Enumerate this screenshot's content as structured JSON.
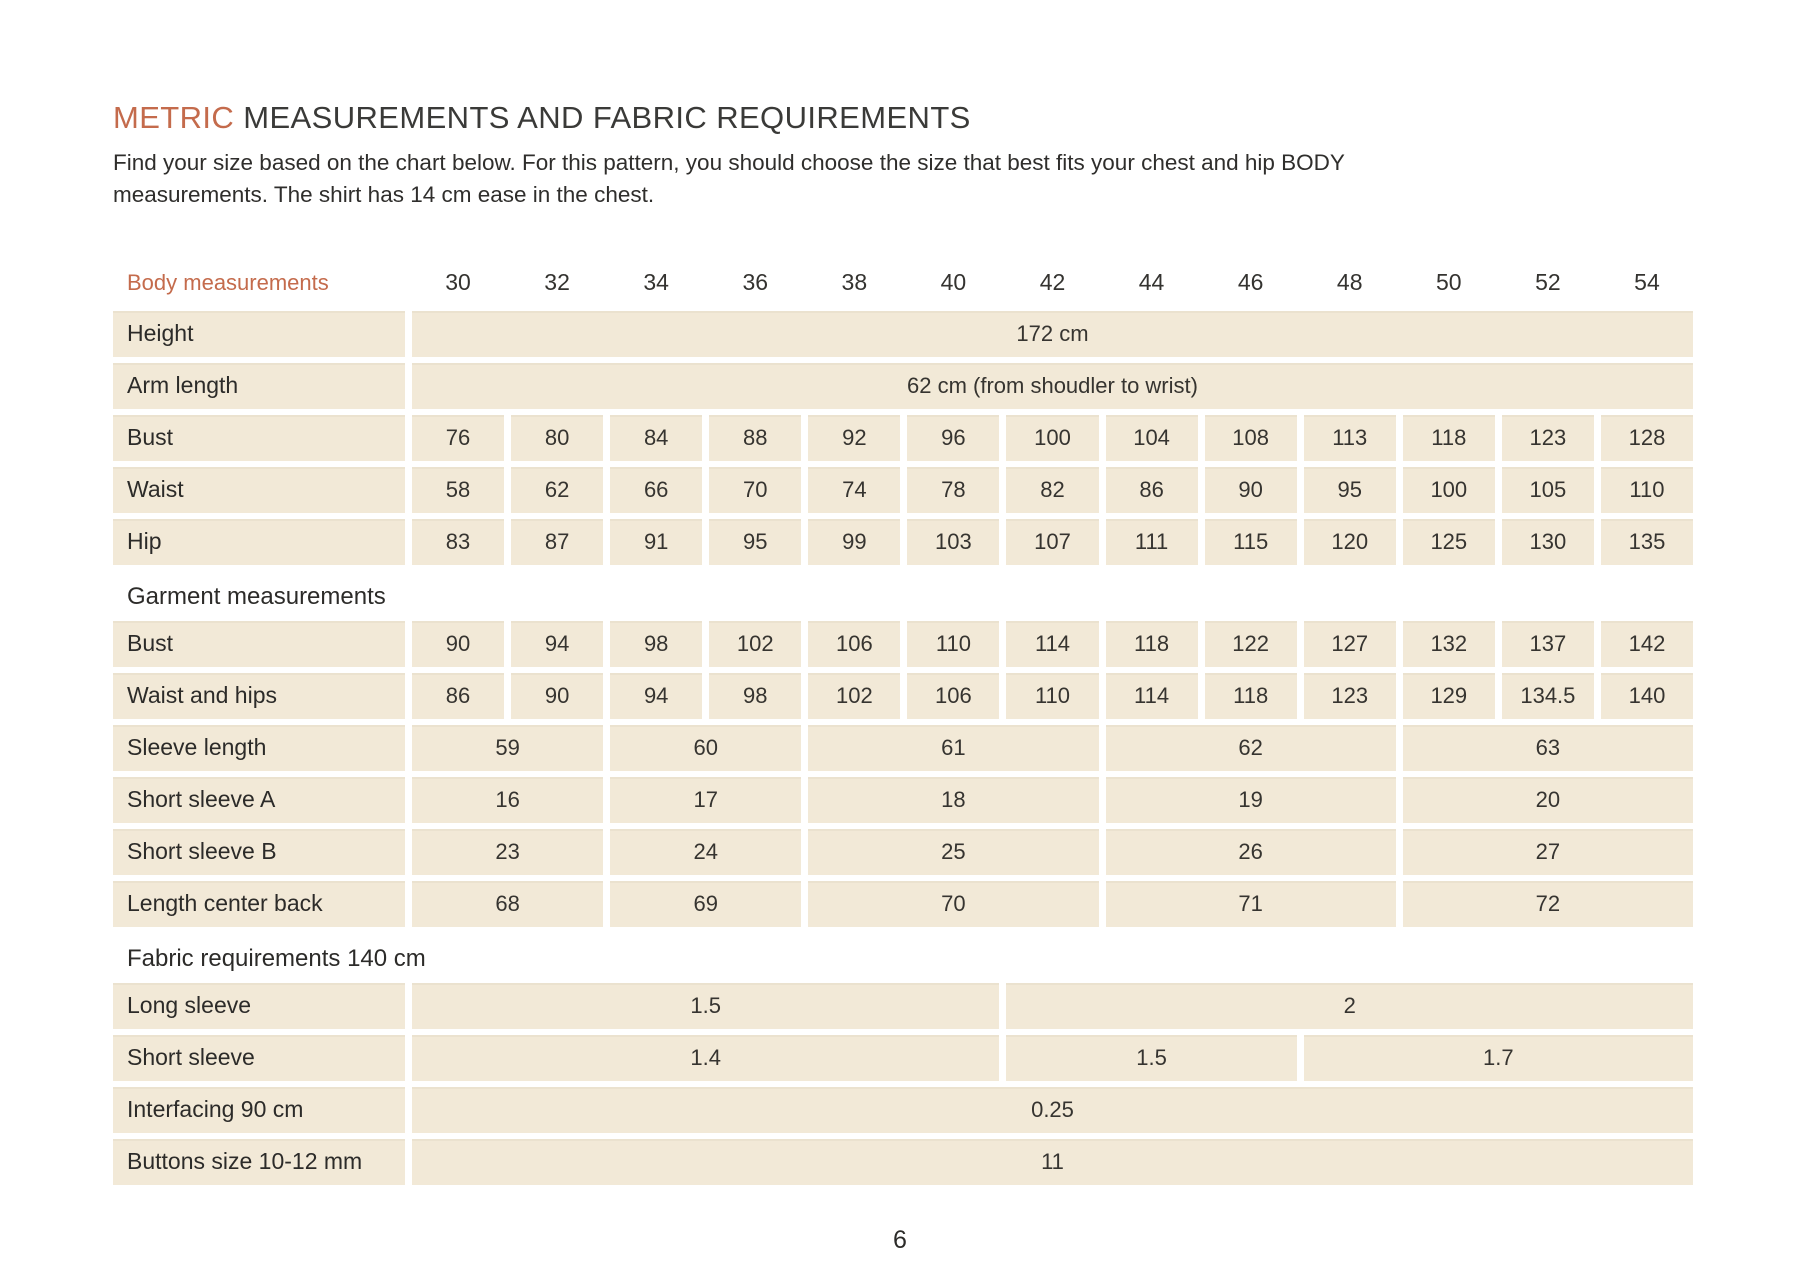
{
  "colors": {
    "accent": "#c46b4c",
    "cell_background": "#f2e9d7",
    "heading_text": "#3a3a38",
    "body_text": "#2f2e2c"
  },
  "page": {
    "title_highlight": "METRIC",
    "title_rest": " MEASUREMENTS AND FABRIC REQUIREMENTS",
    "intro_line1": "Find your size based on the chart below. For this pattern, you should choose the size that best fits your chest and hip BODY",
    "intro_line2": "measurements. The shirt has 14 cm ease in the chest.",
    "page_number": "6"
  },
  "table": {
    "header_label": "Body measurements",
    "sizes": [
      "30",
      "32",
      "34",
      "36",
      "38",
      "40",
      "42",
      "44",
      "46",
      "48",
      "50",
      "52",
      "54"
    ],
    "rows": [
      {
        "label": "Height",
        "cells": [
          {
            "span": 13,
            "value": "172 cm"
          }
        ]
      },
      {
        "label": "Arm length",
        "cells": [
          {
            "span": 13,
            "value": "62 cm (from shoudler to wrist)"
          }
        ]
      },
      {
        "label": "Bust",
        "values": [
          "76",
          "80",
          "84",
          "88",
          "92",
          "96",
          "100",
          "104",
          "108",
          "113",
          "118",
          "123",
          "128"
        ]
      },
      {
        "label": "Waist",
        "values": [
          "58",
          "62",
          "66",
          "70",
          "74",
          "78",
          "82",
          "86",
          "90",
          "95",
          "100",
          "105",
          "110"
        ]
      },
      {
        "label": "Hip",
        "values": [
          "83",
          "87",
          "91",
          "95",
          "99",
          "103",
          "107",
          "111",
          "115",
          "120",
          "125",
          "130",
          "135"
        ]
      },
      {
        "type": "section",
        "label": "Garment measurements"
      },
      {
        "label": "Bust",
        "values": [
          "90",
          "94",
          "98",
          "102",
          "106",
          "110",
          "114",
          "118",
          "122",
          "127",
          "132",
          "137",
          "142"
        ]
      },
      {
        "label": "Waist and hips",
        "values": [
          "86",
          "90",
          "94",
          "98",
          "102",
          "106",
          "110",
          "114",
          "118",
          "123",
          "129",
          "134.5",
          "140"
        ]
      },
      {
        "label": "Sleeve length",
        "cells": [
          {
            "span": 2,
            "value": "59"
          },
          {
            "span": 2,
            "value": "60"
          },
          {
            "span": 3,
            "value": "61"
          },
          {
            "span": 3,
            "value": "62"
          },
          {
            "span": 3,
            "value": "63"
          }
        ]
      },
      {
        "label": "Short sleeve A",
        "cells": [
          {
            "span": 2,
            "value": "16"
          },
          {
            "span": 2,
            "value": "17"
          },
          {
            "span": 3,
            "value": "18"
          },
          {
            "span": 3,
            "value": "19"
          },
          {
            "span": 3,
            "value": "20"
          }
        ]
      },
      {
        "label": "Short sleeve B",
        "cells": [
          {
            "span": 2,
            "value": "23"
          },
          {
            "span": 2,
            "value": "24"
          },
          {
            "span": 3,
            "value": "25"
          },
          {
            "span": 3,
            "value": "26"
          },
          {
            "span": 3,
            "value": "27"
          }
        ]
      },
      {
        "label": "Length center back",
        "cells": [
          {
            "span": 2,
            "value": "68"
          },
          {
            "span": 2,
            "value": "69"
          },
          {
            "span": 3,
            "value": "70"
          },
          {
            "span": 3,
            "value": "71"
          },
          {
            "span": 3,
            "value": "72"
          }
        ]
      },
      {
        "type": "section",
        "label": "Fabric requirements 140 cm"
      },
      {
        "label": "Long sleeve",
        "cells": [
          {
            "span": 6,
            "value": "1.5"
          },
          {
            "span": 7,
            "value": "2"
          }
        ]
      },
      {
        "label": "Short sleeve",
        "cells": [
          {
            "span": 6,
            "value": "1.4"
          },
          {
            "span": 3,
            "value": "1.5"
          },
          {
            "span": 4,
            "value": "1.7"
          }
        ]
      },
      {
        "label": "Interfacing 90 cm",
        "cells": [
          {
            "span": 13,
            "value": "0.25"
          }
        ]
      },
      {
        "label": "Buttons size 10-12 mm",
        "cells": [
          {
            "span": 13,
            "value": "11"
          }
        ]
      }
    ]
  }
}
